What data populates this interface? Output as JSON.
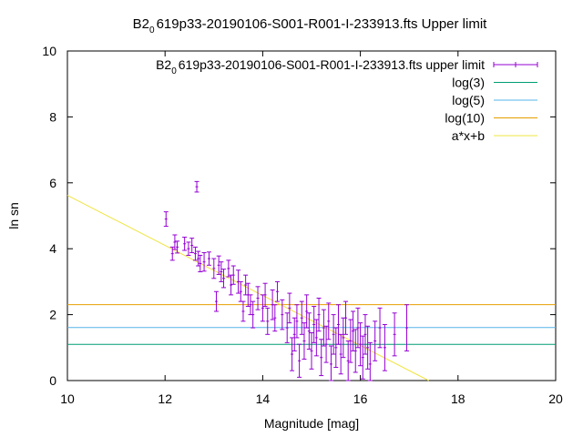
{
  "chart_data": {
    "type": "scatter",
    "title": {
      "prefix": "B2",
      "sub": "0",
      "rest": "619p33-20190106-S001-R001-I-233913.fts Upper limit"
    },
    "xlabel": "Magnitude [mag]",
    "ylabel": "ln sn",
    "xlim": [
      10,
      20
    ],
    "ylim": [
      0,
      10
    ],
    "xticks": [
      "10",
      "12",
      "14",
      "16",
      "18",
      "20"
    ],
    "yticks": [
      "0",
      "2",
      "4",
      "6",
      "8",
      "10"
    ],
    "legend_position": "top-right",
    "grid": false,
    "series": [
      {
        "name": {
          "prefix": "B2",
          "sub": "0",
          "rest": "619p33-20190106-S001-R001-I-233913.fts upper limit"
        },
        "kind": "errorbars",
        "color": "#9400d3",
        "points": [
          [
            12.02,
            4.9,
            0.22
          ],
          [
            12.15,
            3.85,
            0.2
          ],
          [
            12.2,
            4.2,
            0.22
          ],
          [
            12.25,
            4.05,
            0.18
          ],
          [
            12.4,
            4.15,
            0.2
          ],
          [
            12.48,
            4.0,
            0.2
          ],
          [
            12.55,
            4.1,
            0.22
          ],
          [
            12.62,
            3.85,
            0.2
          ],
          [
            12.65,
            5.88,
            0.16
          ],
          [
            12.68,
            3.7,
            0.22
          ],
          [
            12.72,
            3.55,
            0.25
          ],
          [
            12.8,
            3.6,
            0.28
          ],
          [
            12.9,
            3.7,
            0.2
          ],
          [
            13.0,
            3.4,
            0.3
          ],
          [
            13.05,
            2.4,
            0.3
          ],
          [
            13.1,
            3.5,
            0.28
          ],
          [
            13.15,
            3.3,
            0.3
          ],
          [
            13.2,
            3.1,
            0.28
          ],
          [
            13.3,
            3.4,
            0.25
          ],
          [
            13.35,
            2.9,
            0.3
          ],
          [
            13.4,
            3.2,
            0.28
          ],
          [
            13.5,
            3.0,
            0.35
          ],
          [
            13.55,
            2.7,
            0.3
          ],
          [
            13.6,
            2.1,
            0.3
          ],
          [
            13.65,
            2.9,
            0.3
          ],
          [
            13.7,
            2.6,
            0.35
          ],
          [
            13.75,
            2.3,
            0.3
          ],
          [
            13.8,
            2.0,
            0.4
          ],
          [
            13.9,
            2.5,
            0.35
          ],
          [
            14.0,
            2.2,
            0.4
          ],
          [
            14.05,
            2.6,
            0.35
          ],
          [
            14.1,
            1.8,
            0.4
          ],
          [
            14.2,
            2.3,
            0.45
          ],
          [
            14.25,
            1.9,
            0.4
          ],
          [
            14.3,
            2.7,
            0.3
          ],
          [
            14.4,
            2.0,
            0.45
          ],
          [
            14.5,
            1.6,
            0.45
          ],
          [
            14.55,
            2.2,
            0.45
          ],
          [
            14.6,
            0.8,
            0.5
          ],
          [
            14.65,
            1.4,
            0.5
          ],
          [
            14.7,
            1.8,
            0.5
          ],
          [
            14.75,
            0.6,
            0.5
          ],
          [
            14.8,
            1.9,
            0.5
          ],
          [
            14.85,
            1.2,
            0.55
          ],
          [
            14.9,
            2.1,
            0.5
          ],
          [
            14.95,
            1.5,
            0.55
          ],
          [
            15.0,
            0.9,
            0.55
          ],
          [
            15.05,
            1.7,
            0.55
          ],
          [
            15.1,
            1.3,
            0.55
          ],
          [
            15.15,
            2.0,
            0.5
          ],
          [
            15.2,
            0.7,
            0.55
          ],
          [
            15.25,
            1.6,
            0.55
          ],
          [
            15.3,
            1.1,
            0.55
          ],
          [
            15.35,
            1.8,
            0.55
          ],
          [
            15.4,
            0.5,
            0.55
          ],
          [
            15.45,
            1.4,
            0.6
          ],
          [
            15.5,
            1.0,
            0.6
          ],
          [
            15.55,
            1.7,
            0.6
          ],
          [
            15.6,
            0.8,
            0.6
          ],
          [
            15.65,
            1.3,
            0.6
          ],
          [
            15.7,
            1.9,
            0.5
          ],
          [
            15.75,
            0.6,
            0.6
          ],
          [
            15.8,
            1.2,
            0.65
          ],
          [
            15.85,
            1.5,
            0.6
          ],
          [
            15.9,
            0.9,
            0.65
          ],
          [
            15.95,
            1.6,
            0.6
          ],
          [
            16.0,
            1.1,
            0.65
          ],
          [
            16.05,
            0.7,
            0.65
          ],
          [
            16.1,
            1.4,
            0.6
          ],
          [
            16.15,
            1.0,
            0.65
          ],
          [
            16.2,
            0.5,
            0.65
          ],
          [
            16.3,
            1.2,
            0.6
          ],
          [
            16.4,
            1.6,
            0.6
          ],
          [
            16.5,
            1.0,
            0.7
          ],
          [
            16.7,
            1.4,
            0.65
          ],
          [
            16.95,
            1.6,
            0.7
          ]
        ]
      },
      {
        "name": "log(3)",
        "kind": "hline",
        "y": 1.0986,
        "color": "#009e73"
      },
      {
        "name": "log(5)",
        "kind": "hline",
        "y": 1.6094,
        "color": "#56b4e9"
      },
      {
        "name": "log(10)",
        "kind": "hline",
        "y": 2.3026,
        "color": "#e69f00"
      },
      {
        "name": "a*x+b",
        "kind": "line",
        "color": "#f0e442",
        "x": [
          10,
          17.4
        ],
        "y": [
          5.62,
          0.0
        ]
      }
    ]
  }
}
